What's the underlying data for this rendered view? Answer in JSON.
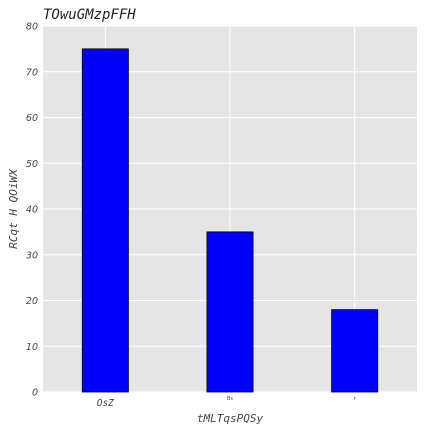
{
  "chart_data": {
    "type": "bar",
    "title": "TOwuGMzpFFH",
    "xlabel": "tMLTqsPQSy",
    "ylabel": "RCqt H QOiWX",
    "categories": [
      "OsZ",
      "Bs",
      "r"
    ],
    "values": [
      75,
      35,
      18
    ],
    "ylim": [
      0,
      80
    ],
    "yticks": [
      0,
      10,
      20,
      30,
      40,
      50,
      60,
      70,
      80
    ],
    "grid": true,
    "legend": "none",
    "colors": {
      "bar_fill": "#0000ff",
      "bar_edge": "#000000",
      "plot_bg": "#e5e5e5",
      "grid": "#ffffff"
    }
  }
}
